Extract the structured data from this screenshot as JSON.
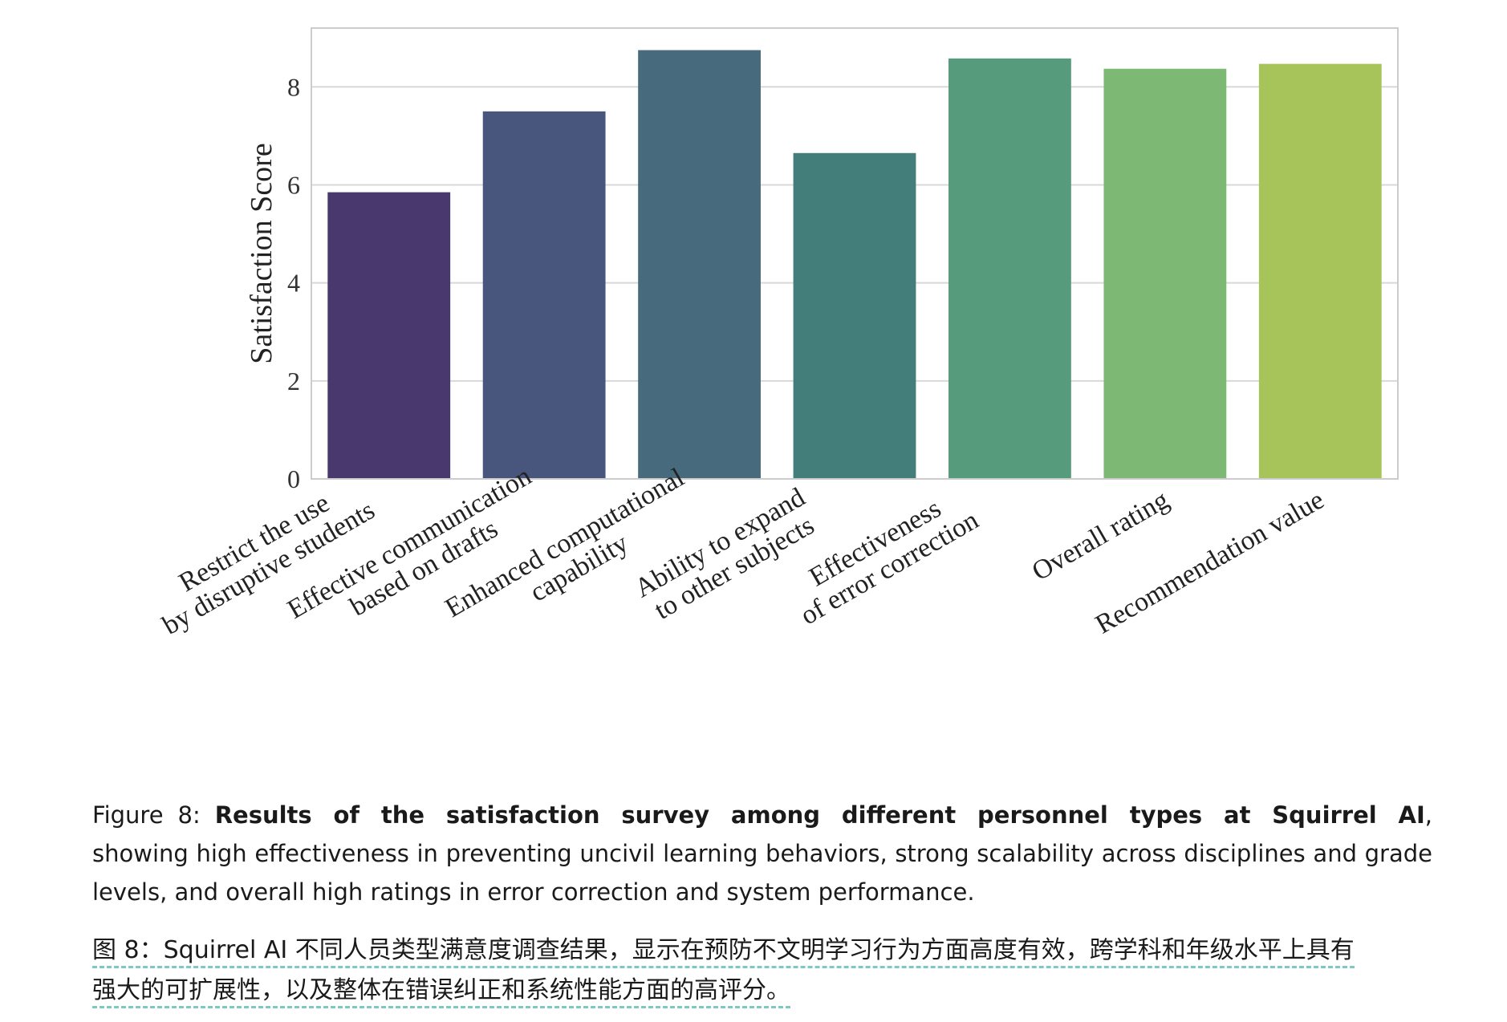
{
  "chart_data": {
    "type": "bar",
    "categories": [
      [
        "Restrict the use",
        "by disruptive students"
      ],
      [
        "Effective communication",
        "based on drafts"
      ],
      [
        "Enhanced computational",
        "capability"
      ],
      [
        "Ability to expand",
        "to other subjects"
      ],
      [
        "Effectiveness",
        "of error correction"
      ],
      [
        "Overall rating"
      ],
      [
        "Recommendation value"
      ]
    ],
    "values": [
      5.85,
      7.5,
      8.75,
      6.65,
      8.58,
      8.37,
      8.47
    ],
    "colors": [
      "#48386e",
      "#48557c",
      "#476b7d",
      "#447e7a",
      "#569b7b",
      "#7db975",
      "#a7c45a"
    ],
    "ylabel": "Satisfaction Score",
    "xlabel": "",
    "ylim": [
      0,
      9.2
    ],
    "yticks": [
      0,
      2,
      4,
      6,
      8
    ],
    "grid": true
  },
  "caption": {
    "prefix": "Figure 8:",
    "bold": "Results of the satisfaction survey among different personnel types at Squirrel AI",
    "rest": ", showing high effectiveness in preventing uncivil learning behaviors, strong scalability across disciplines and grade levels, and overall high ratings in error correction and system performance.",
    "zh_line1": "图 8：Squirrel AI 不同人员类型满意度调查结果，显示在预防不文明学习行为方面高度有效，跨学科和年级水平上具有",
    "zh_line2": "强大的可扩展性，以及整体在错误纠正和系统性能方面的高评分。"
  }
}
